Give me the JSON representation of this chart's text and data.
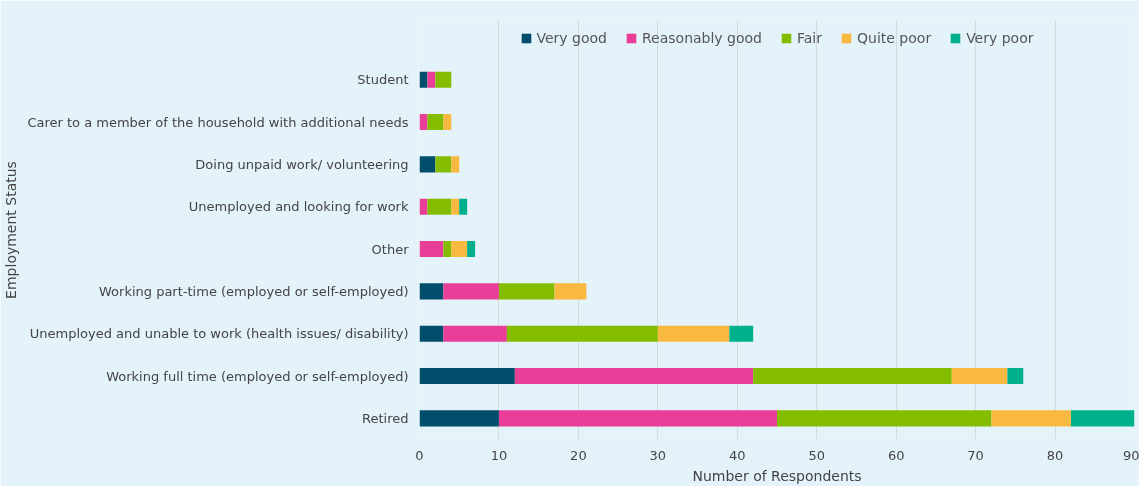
{
  "chart_data": {
    "type": "bar",
    "orientation": "horizontal",
    "stacked": true,
    "xlabel": "Number of Respondents",
    "ylabel": "Employment Status",
    "categories": [
      "Student",
      "Carer to a member of the household with additional needs",
      "Doing unpaid work/ volunteering",
      "Unemployed and looking for work",
      "Other",
      "Working part-time (employed or self-employed)",
      "Unemployed and unable to work (health issues/ disability)",
      "Working full time (employed or self-employed)",
      "Retired"
    ],
    "series": [
      {
        "name": "Very good",
        "color": "#004e6b",
        "values": [
          1,
          0,
          2,
          0,
          0,
          3,
          3,
          12,
          10
        ]
      },
      {
        "name": "Reasonably good",
        "color": "#e83e97",
        "values": [
          1,
          1,
          0,
          1,
          3,
          7,
          8,
          30,
          35
        ]
      },
      {
        "name": "Fair",
        "color": "#84bd00",
        "values": [
          2,
          2,
          2,
          3,
          1,
          7,
          19,
          25,
          27
        ]
      },
      {
        "name": "Quite poor",
        "color": "#f9b840",
        "values": [
          0,
          1,
          1,
          1,
          2,
          4,
          9,
          7,
          10
        ]
      },
      {
        "name": "Very poor",
        "color": "#00b08c",
        "values": [
          0,
          0,
          0,
          1,
          1,
          0,
          3,
          2,
          8
        ]
      }
    ],
    "xlim": [
      0,
      90
    ],
    "xticks": [
      0,
      10,
      20,
      30,
      40,
      50,
      60,
      70,
      80,
      90
    ],
    "grid": "x",
    "legend": "top"
  }
}
